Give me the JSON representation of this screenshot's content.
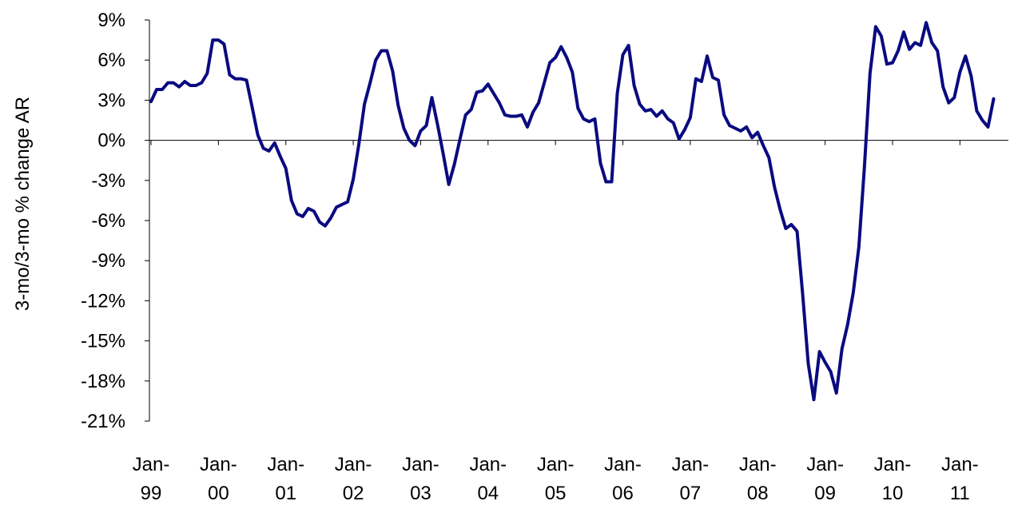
{
  "chart_data": {
    "type": "line",
    "title": "",
    "ylabel": "3-mo/3-mo % change AR",
    "xlabel": "",
    "ylim": [
      -21,
      9
    ],
    "yticks": [
      9,
      6,
      3,
      0,
      -3,
      -6,
      -9,
      -12,
      -15,
      -18,
      -21
    ],
    "ytick_labels": [
      "9%",
      "6%",
      "3%",
      "0%",
      "-3%",
      "-6%",
      "-9%",
      "-12%",
      "-15%",
      "-18%",
      "-21%"
    ],
    "xtick_labels": [
      {
        "line1": "Jan-",
        "line2": "99"
      },
      {
        "line1": "Jan-",
        "line2": "00"
      },
      {
        "line1": "Jan-",
        "line2": "01"
      },
      {
        "line1": "Jan-",
        "line2": "02"
      },
      {
        "line1": "Jan-",
        "line2": "03"
      },
      {
        "line1": "Jan-",
        "line2": "04"
      },
      {
        "line1": "Jan-",
        "line2": "05"
      },
      {
        "line1": "Jan-",
        "line2": "06"
      },
      {
        "line1": "Jan-",
        "line2": "07"
      },
      {
        "line1": "Jan-",
        "line2": "08"
      },
      {
        "line1": "Jan-",
        "line2": "09"
      },
      {
        "line1": "Jan-",
        "line2": "10"
      },
      {
        "line1": "Jan-",
        "line2": "11"
      }
    ],
    "x_start": "1999-01",
    "x_end": "2011-08",
    "grid": false,
    "legend": "none",
    "series": [
      {
        "color": "#0a0a80",
        "values": [
          2.9,
          3.8,
          3.8,
          4.3,
          4.3,
          4.0,
          4.4,
          4.1,
          4.1,
          4.3,
          5.0,
          7.5,
          7.5,
          7.2,
          4.9,
          4.6,
          4.6,
          4.5,
          2.5,
          0.4,
          -0.6,
          -0.8,
          -0.2,
          -1.2,
          -2.1,
          -4.5,
          -5.5,
          -5.7,
          -5.1,
          -5.3,
          -6.1,
          -6.4,
          -5.8,
          -5.0,
          -4.8,
          -4.6,
          -2.9,
          -0.3,
          2.7,
          4.3,
          6.0,
          6.7,
          6.7,
          5.2,
          2.6,
          0.9,
          0.0,
          -0.4,
          0.7,
          1.1,
          3.2,
          1.2,
          -1.0,
          -3.3,
          -1.8,
          0.1,
          1.9,
          2.3,
          3.6,
          3.7,
          4.2,
          3.5,
          2.8,
          1.9,
          1.8,
          1.8,
          1.9,
          1.0,
          2.1,
          2.8,
          4.3,
          5.8,
          6.2,
          7.0,
          6.2,
          5.1,
          2.4,
          1.6,
          1.4,
          1.6,
          -1.7,
          -3.1,
          -3.1,
          3.5,
          6.4,
          7.1,
          4.1,
          2.7,
          2.2,
          2.3,
          1.8,
          2.2,
          1.6,
          1.3,
          0.1,
          0.8,
          1.7,
          4.6,
          4.4,
          6.3,
          4.7,
          4.5,
          1.9,
          1.1,
          0.9,
          0.7,
          1.0,
          0.2,
          0.6,
          -0.4,
          -1.3,
          -3.5,
          -5.2,
          -6.6,
          -6.3,
          -6.8,
          -11.5,
          -16.7,
          -19.4,
          -15.8,
          -16.6,
          -17.3,
          -18.9,
          -15.6,
          -13.8,
          -11.4,
          -8.0,
          -2.0,
          5.0,
          8.5,
          7.8,
          5.7,
          5.8,
          6.7,
          8.1,
          6.8,
          7.3,
          7.1,
          8.8,
          7.3,
          6.7,
          4.0,
          2.8,
          3.2,
          5.1,
          6.3,
          4.8,
          2.2,
          1.5,
          1.0,
          3.1
        ]
      }
    ]
  }
}
